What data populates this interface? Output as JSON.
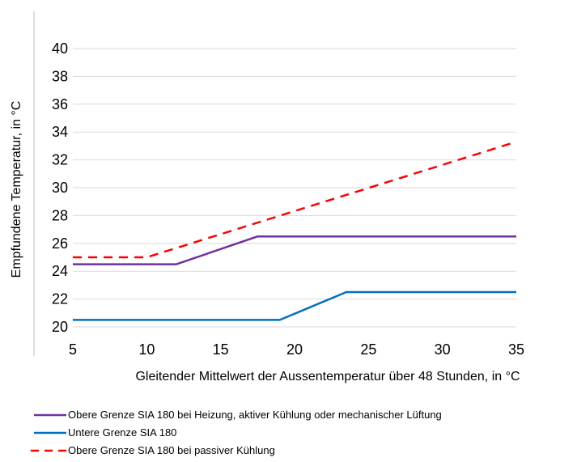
{
  "chart_data": {
    "type": "line",
    "xlabel": "Gleitender Mittelwert der Aussentemperatur über 48 Stunden, in °C",
    "ylabel": "Empfundene Temperatur, in °C",
    "xlim": [
      5,
      35
    ],
    "ylim": [
      20,
      40
    ],
    "x_ticks": [
      5,
      10,
      15,
      20,
      25,
      30,
      35
    ],
    "y_ticks": [
      20,
      22,
      24,
      26,
      28,
      30,
      32,
      34,
      36,
      38,
      40
    ],
    "grid": "horizontal",
    "legend_position": "bottom",
    "series": [
      {
        "name": "Obere Grenze SIA 180 bei Heizung, aktiver Kühlung oder mechanischer Lüftung",
        "color": "#7030a0",
        "style": "solid",
        "points": [
          [
            5,
            24.5
          ],
          [
            12,
            24.5
          ],
          [
            17.5,
            26.5
          ],
          [
            35,
            26.5
          ]
        ]
      },
      {
        "name": "Untere Grenze SIA 180",
        "color": "#0070c0",
        "style": "solid",
        "points": [
          [
            5,
            20.5
          ],
          [
            19,
            20.5
          ],
          [
            23.5,
            22.5
          ],
          [
            35,
            22.5
          ]
        ]
      },
      {
        "name": "Obere Grenze SIA 180 bei passiver Kühlung",
        "color": "#ff0000",
        "style": "dashed",
        "points": [
          [
            5,
            25
          ],
          [
            10,
            25
          ],
          [
            35,
            33.3
          ]
        ]
      }
    ]
  }
}
